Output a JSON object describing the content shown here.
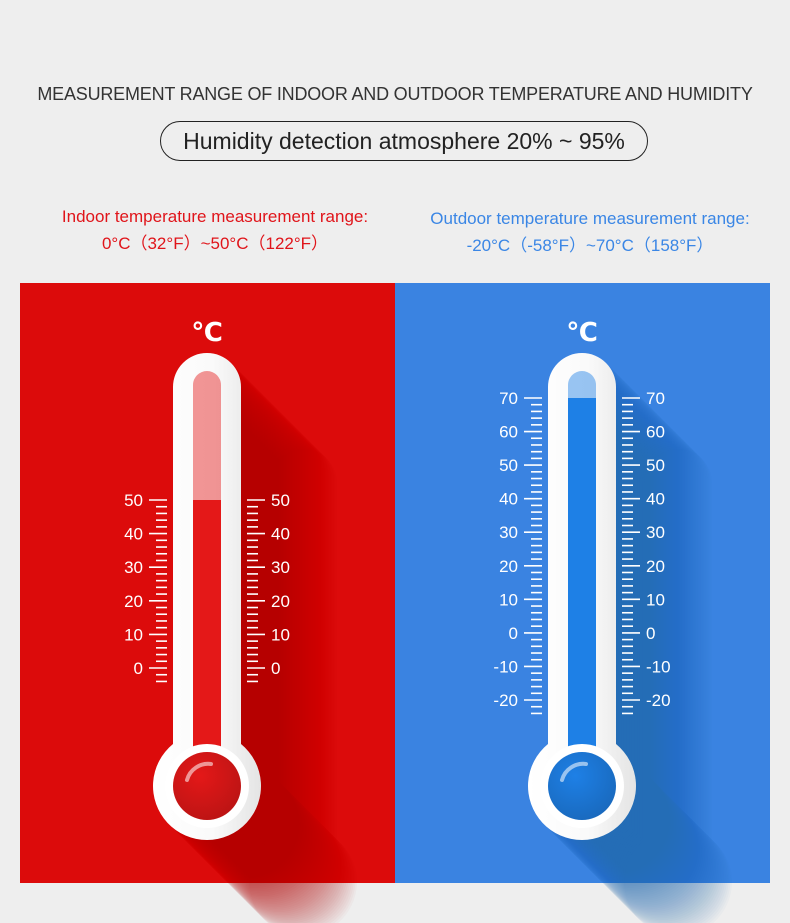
{
  "header": {
    "title": "MEASUREMENT RANGE OF INDOOR AND OUTDOOR TEMPERATURE AND HUMIDITY",
    "humidity": "Humidity detection atmosphere 20% ~ 95%"
  },
  "indoor": {
    "label": "Indoor temperature measurement range:",
    "range_text": "0°C（32°F）~50°C（122°F）",
    "unit": "℃",
    "ticks": [
      "0",
      "10",
      "20",
      "30",
      "40",
      "50"
    ],
    "scale_min": 0,
    "scale_max": 50,
    "fill_value": 50,
    "color": "#dc0b0b",
    "fill_color": "#e41818"
  },
  "outdoor": {
    "label": "Outdoor temperature measurement range:",
    "range_text": "-20°C（-58°F）~70°C（158°F）",
    "unit": "℃",
    "ticks": [
      "-20",
      "-10",
      "0",
      "10",
      "20",
      "30",
      "40",
      "50",
      "60",
      "70"
    ],
    "scale_min": -20,
    "scale_max": 70,
    "fill_value": 70,
    "color": "#3a83e1",
    "fill_color": "#1e80e6"
  }
}
